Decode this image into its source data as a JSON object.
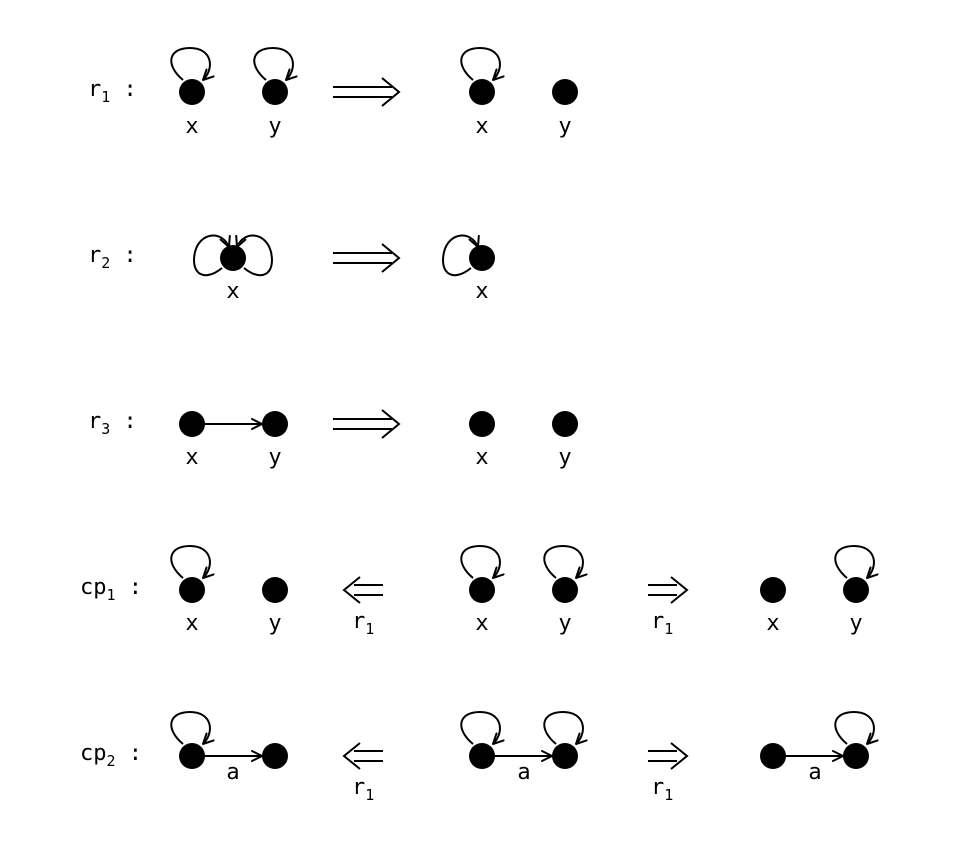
{
  "rules": [
    {
      "name": "r",
      "sub": "1",
      "suffix": " :"
    },
    {
      "name": "r",
      "sub": "2",
      "suffix": " :"
    },
    {
      "name": "r",
      "sub": "3",
      "suffix": " :"
    },
    {
      "name": "cp",
      "sub": "1",
      "suffix": " :"
    },
    {
      "name": "cp",
      "sub": "2",
      "suffix": " :"
    }
  ],
  "node_labels": {
    "x": "x",
    "y": "y"
  },
  "edge_label": "a",
  "step_label": {
    "name": "r",
    "sub": "1"
  },
  "colors": {
    "ink": "#000000",
    "background": "#ffffff"
  }
}
